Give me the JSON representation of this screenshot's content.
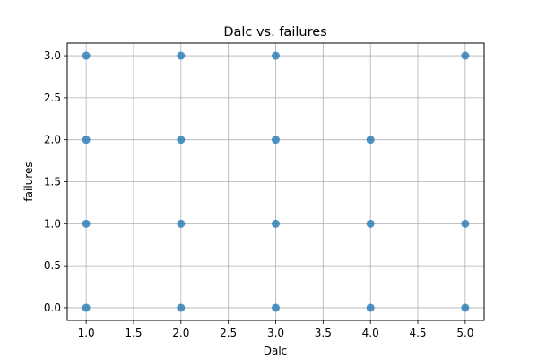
{
  "chart_data": {
    "type": "scatter",
    "title": "Dalc vs. failures",
    "xlabel": "Dalc",
    "ylabel": "failures",
    "xlim": [
      0.8,
      5.2
    ],
    "ylim": [
      -0.15,
      3.15
    ],
    "xticks": [
      1.0,
      1.5,
      2.0,
      2.5,
      3.0,
      3.5,
      4.0,
      4.5,
      5.0
    ],
    "xtick_labels": [
      "1.0",
      "1.5",
      "2.0",
      "2.5",
      "3.0",
      "3.5",
      "4.0",
      "4.5",
      "5.0"
    ],
    "yticks": [
      0.0,
      0.5,
      1.0,
      1.5,
      2.0,
      2.5,
      3.0
    ],
    "ytick_labels": [
      "0.0",
      "0.5",
      "1.0",
      "1.5",
      "2.0",
      "2.5",
      "3.0"
    ],
    "grid": true,
    "marker_color": "#1f77b4",
    "points": [
      {
        "x": 1,
        "y": 0
      },
      {
        "x": 1,
        "y": 1
      },
      {
        "x": 1,
        "y": 2
      },
      {
        "x": 1,
        "y": 3
      },
      {
        "x": 2,
        "y": 0
      },
      {
        "x": 2,
        "y": 1
      },
      {
        "x": 2,
        "y": 2
      },
      {
        "x": 2,
        "y": 3
      },
      {
        "x": 3,
        "y": 0
      },
      {
        "x": 3,
        "y": 1
      },
      {
        "x": 3,
        "y": 2
      },
      {
        "x": 3,
        "y": 3
      },
      {
        "x": 4,
        "y": 0
      },
      {
        "x": 4,
        "y": 1
      },
      {
        "x": 4,
        "y": 2
      },
      {
        "x": 5,
        "y": 0
      },
      {
        "x": 5,
        "y": 1
      },
      {
        "x": 5,
        "y": 3
      }
    ]
  }
}
